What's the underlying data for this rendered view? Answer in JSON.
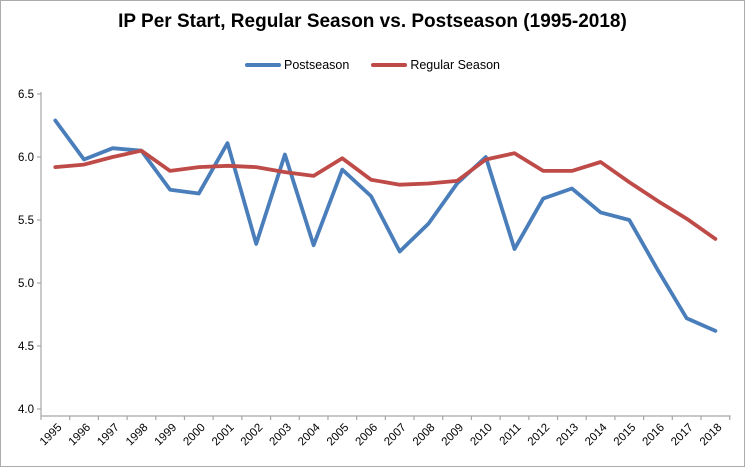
{
  "title": "IP Per Start, Regular Season vs. Postseason (1995-2018)",
  "chart_data": {
    "type": "line",
    "x": [
      "1995",
      "1996",
      "1997",
      "1998",
      "1999",
      "2000",
      "2001",
      "2002",
      "2003",
      "2004",
      "2005",
      "2006",
      "2007",
      "2008",
      "2009",
      "2010",
      "2011",
      "2012",
      "2013",
      "2014",
      "2015",
      "2016",
      "2017",
      "2018"
    ],
    "series": [
      {
        "name": "Postseason",
        "color": "#4A7EBB",
        "values": [
          6.29,
          5.98,
          6.07,
          6.05,
          5.74,
          5.71,
          6.11,
          5.31,
          6.02,
          5.3,
          5.9,
          5.69,
          5.25,
          5.47,
          5.79,
          6.0,
          5.27,
          5.67,
          5.75,
          5.56,
          5.5,
          5.1,
          4.72,
          4.62
        ]
      },
      {
        "name": "Regular Season",
        "color": "#BE4B48",
        "values": [
          5.92,
          5.94,
          6.0,
          6.05,
          5.89,
          5.92,
          5.93,
          5.92,
          5.88,
          5.85,
          5.99,
          5.82,
          5.78,
          5.79,
          5.81,
          5.98,
          6.03,
          5.89,
          5.89,
          5.96,
          5.8,
          5.65,
          5.51,
          5.35
        ]
      }
    ],
    "ylim": [
      4.0,
      6.5
    ],
    "ytick_labels": [
      "6.5",
      "6.0",
      "5.5",
      "5.0",
      "4.5",
      "4.0"
    ],
    "xlabel": "",
    "ylabel": "",
    "grid": false,
    "legend_position": "top-center",
    "axis_color": "#A6A6A6"
  }
}
